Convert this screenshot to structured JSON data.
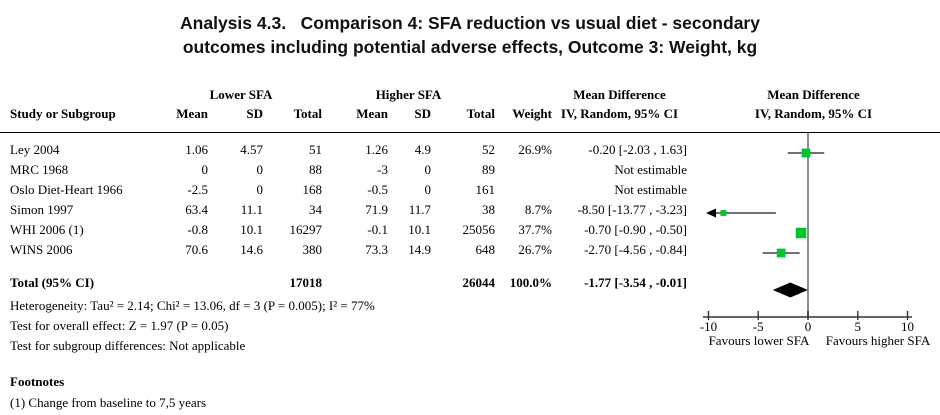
{
  "title": {
    "line1": "Analysis 4.3.   Comparison 4: SFA reduction vs usual diet - secondary",
    "line2": "outcomes including potential adverse effects, Outcome 3: Weight, kg"
  },
  "table": {
    "group_headers": {
      "lower": "Lower SFA",
      "higher": "Higher SFA",
      "md_text": "Mean Difference",
      "md_plot": "Mean Difference"
    },
    "col_headers": {
      "study": "Study or Subgroup",
      "mean": "Mean",
      "sd": "SD",
      "total": "Total",
      "weight": "Weight",
      "iv_text": "IV, Random, 95% CI",
      "iv_plot": "IV, Random, 95% CI"
    },
    "rows": [
      {
        "study": "Ley 2004",
        "l_mean": "1.06",
        "l_sd": "4.57",
        "l_total": "51",
        "h_mean": "1.26",
        "h_sd": "4.9",
        "h_total": "52",
        "weight": "26.9%",
        "ci_text": "-0.20 [-2.03 , 1.63]"
      },
      {
        "study": "MRC 1968",
        "l_mean": "0",
        "l_sd": "0",
        "l_total": "88",
        "h_mean": "-3",
        "h_sd": "0",
        "h_total": "89",
        "weight": "",
        "ci_text": "Not estimable"
      },
      {
        "study": "Oslo Diet-Heart 1966",
        "l_mean": "-2.5",
        "l_sd": "0",
        "l_total": "168",
        "h_mean": "-0.5",
        "h_sd": "0",
        "h_total": "161",
        "weight": "",
        "ci_text": "Not estimable"
      },
      {
        "study": "Simon 1997",
        "l_mean": "63.4",
        "l_sd": "11.1",
        "l_total": "34",
        "h_mean": "71.9",
        "h_sd": "11.7",
        "h_total": "38",
        "weight": "8.7%",
        "ci_text": "-8.50 [-13.77 , -3.23]"
      },
      {
        "study": "WHI 2006 (1)",
        "l_mean": "-0.8",
        "l_sd": "10.1",
        "l_total": "16297",
        "h_mean": "-0.1",
        "h_sd": "10.1",
        "h_total": "25056",
        "weight": "37.7%",
        "ci_text": "-0.70 [-0.90 , -0.50]"
      },
      {
        "study": "WINS 2006",
        "l_mean": "70.6",
        "l_sd": "14.6",
        "l_total": "380",
        "h_mean": "73.3",
        "h_sd": "14.9",
        "h_total": "648",
        "weight": "26.7%",
        "ci_text": "-2.70 [-4.56 , -0.84]"
      }
    ],
    "total_row": {
      "study": "Total (95% CI)",
      "l_mean": "",
      "l_sd": "",
      "l_total": "17018",
      "h_mean": "",
      "h_sd": "",
      "h_total": "26044",
      "weight": "100.0%",
      "ci_text": "-1.77 [-3.54 , -0.01]"
    }
  },
  "stats": {
    "heterogeneity": "Heterogeneity: Tau² = 2.14; Chi² = 13.06, df = 3 (P = 0.005); I² = 77%",
    "overall_effect": "Test for overall effect: Z = 1.97 (P = 0.05)",
    "subgroup": "Test for subgroup differences: Not applicable"
  },
  "footnotes": {
    "heading": "Footnotes",
    "items": [
      "(1) Change from baseline to 7,5 years"
    ]
  },
  "chart_data": {
    "type": "forest",
    "title": "Comparison 4: SFA reduction vs usual diet - secondary outcomes including potential adverse effects, Outcome 3: Weight, kg",
    "effect_measure": "Mean Difference, IV, Random, 95% CI",
    "x_axis": {
      "min": -10,
      "max": 10,
      "ticks": [
        -10,
        -5,
        0,
        5,
        10
      ],
      "label_left": "Favours lower SFA",
      "label_right": "Favours higher SFA"
    },
    "studies": [
      {
        "name": "Ley 2004",
        "md": -0.2,
        "ci": [
          -2.03,
          1.63
        ],
        "weight_pct": 26.9,
        "estimable": true,
        "row": 0
      },
      {
        "name": "MRC 1968",
        "md": null,
        "ci": null,
        "weight_pct": null,
        "estimable": false,
        "row": 1
      },
      {
        "name": "Oslo Diet-Heart 1966",
        "md": null,
        "ci": null,
        "weight_pct": null,
        "estimable": false,
        "row": 2
      },
      {
        "name": "Simon 1997",
        "md": -8.5,
        "ci": [
          -13.77,
          -3.23
        ],
        "weight_pct": 8.7,
        "estimable": true,
        "row": 3
      },
      {
        "name": "WHI 2006 (1)",
        "md": -0.7,
        "ci": [
          -0.9,
          -0.5
        ],
        "weight_pct": 37.7,
        "estimable": true,
        "row": 4
      },
      {
        "name": "WINS 2006",
        "md": -2.7,
        "ci": [
          -4.56,
          -0.84
        ],
        "weight_pct": 26.7,
        "estimable": true,
        "row": 5
      }
    ],
    "total": {
      "md": -1.77,
      "ci": [
        -3.54,
        -0.01
      ],
      "lower_total": 17018,
      "higher_total": 26044,
      "weight_pct": 100.0
    },
    "colors": {
      "marker": "#00c42d",
      "diamond": "#000000",
      "ci_line": "#1a1a1a",
      "zero_line": "#8c8c8c",
      "axis": "#333333"
    }
  }
}
